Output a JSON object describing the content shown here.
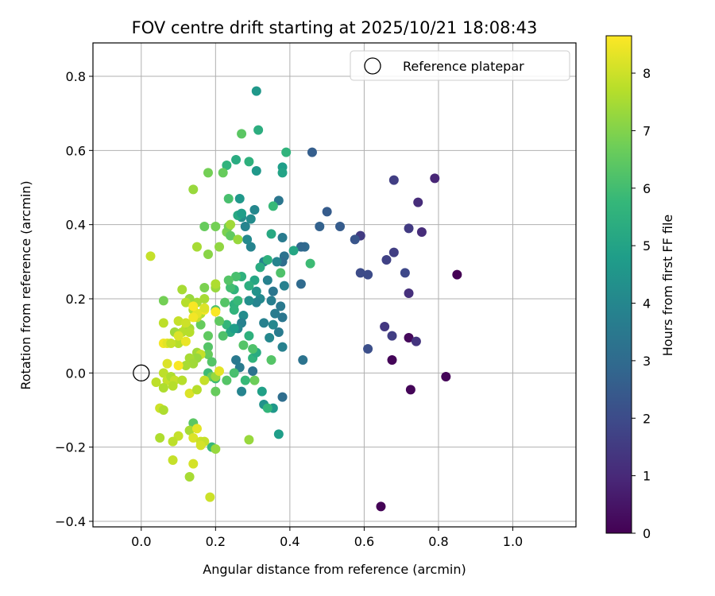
{
  "chart_data": {
    "type": "scatter",
    "title": "FOV centre drift starting at 2025/10/21 18:08:43",
    "xlabel": "Angular distance from reference (arcmin)",
    "ylabel": "Rotation from reference (arcmin)",
    "xlim": [
      -0.13,
      1.17
    ],
    "ylim": [
      -0.415,
      0.89
    ],
    "xticks": [
      0.0,
      0.2,
      0.4,
      0.6,
      0.8,
      1.0
    ],
    "xtick_labels": [
      "0.0",
      "0.2",
      "0.4",
      "0.6",
      "0.8",
      "1.0"
    ],
    "yticks": [
      -0.4,
      -0.2,
      0.0,
      0.2,
      0.4,
      0.6,
      0.8
    ],
    "ytick_labels": [
      "−0.4",
      "−0.2",
      "0.0",
      "0.2",
      "0.4",
      "0.6",
      "0.8"
    ],
    "grid": true,
    "legend": {
      "position": "top-right",
      "entries": [
        "Reference platepar"
      ]
    },
    "reference_point": {
      "label": "Reference platepar",
      "x": 0.0,
      "y": 0.0
    },
    "colorbar": {
      "label": "Hours from first FF file",
      "range": [
        0,
        8.65
      ],
      "ticks": [
        0,
        1,
        2,
        3,
        4,
        5,
        6,
        7,
        8
      ],
      "tick_labels": [
        "0",
        "1",
        "2",
        "3",
        "4",
        "5",
        "6",
        "7",
        "8"
      ],
      "colormap": "viridis"
    },
    "colors": {
      "viridis_stops": [
        "#440154",
        "#482878",
        "#3e4989",
        "#31688e",
        "#26828e",
        "#1f9e89",
        "#35b779",
        "#6ece58",
        "#b5de2b",
        "#fde725"
      ]
    },
    "points": [
      [
        0.85,
        0.265,
        0.0
      ],
      [
        0.82,
        -0.01,
        0.1
      ],
      [
        0.645,
        -0.36,
        0.05
      ],
      [
        0.675,
        0.035,
        0.1
      ],
      [
        0.725,
        -0.045,
        0.1
      ],
      [
        0.72,
        0.095,
        0.2
      ],
      [
        0.79,
        0.525,
        0.9
      ],
      [
        0.745,
        0.46,
        1.1
      ],
      [
        0.755,
        0.38,
        1.1
      ],
      [
        0.68,
        0.52,
        1.6
      ],
      [
        0.72,
        0.39,
        1.5
      ],
      [
        0.74,
        0.085,
        1.3
      ],
      [
        0.71,
        0.27,
        1.9
      ],
      [
        0.72,
        0.215,
        1.2
      ],
      [
        0.68,
        0.325,
        1.6
      ],
      [
        0.66,
        0.305,
        1.7
      ],
      [
        0.655,
        0.125,
        1.4
      ],
      [
        0.675,
        0.1,
        1.6
      ],
      [
        0.61,
        0.265,
        2.0
      ],
      [
        0.59,
        0.27,
        2.0
      ],
      [
        0.59,
        0.37,
        1.5
      ],
      [
        0.61,
        0.065,
        2.1
      ],
      [
        0.575,
        0.36,
        2.3
      ],
      [
        0.535,
        0.395,
        2.5
      ],
      [
        0.5,
        0.435,
        2.5
      ],
      [
        0.48,
        0.395,
        2.7
      ],
      [
        0.46,
        0.595,
        2.6
      ],
      [
        0.44,
        0.34,
        3.0
      ],
      [
        0.43,
        0.34,
        2.9
      ],
      [
        0.43,
        0.24,
        3.0
      ],
      [
        0.435,
        0.035,
        3.3
      ],
      [
        0.38,
        -0.065,
        3.1
      ],
      [
        0.37,
        0.465,
        3.4
      ],
      [
        0.38,
        0.365,
        3.6
      ],
      [
        0.385,
        0.315,
        3.3
      ],
      [
        0.38,
        0.3,
        3.1
      ],
      [
        0.385,
        0.235,
        3.8
      ],
      [
        0.375,
        0.18,
        3.5
      ],
      [
        0.38,
        0.15,
        3.4
      ],
      [
        0.37,
        0.11,
        3.6
      ],
      [
        0.38,
        0.07,
        3.8
      ],
      [
        0.365,
        0.3,
        3.9
      ],
      [
        0.355,
        0.22,
        3.4
      ],
      [
        0.36,
        0.16,
        3.6
      ],
      [
        0.35,
        0.195,
        3.7
      ],
      [
        0.355,
        0.13,
        4.0
      ],
      [
        0.345,
        0.095,
        4.0
      ],
      [
        0.34,
        0.25,
        3.8
      ],
      [
        0.33,
        0.135,
        3.8
      ],
      [
        0.33,
        0.3,
        3.9
      ],
      [
        0.32,
        0.2,
        4.1
      ],
      [
        0.31,
        0.19,
        3.9
      ],
      [
        0.305,
        0.44,
        4.0
      ],
      [
        0.295,
        0.415,
        4.2
      ],
      [
        0.295,
        0.34,
        3.9
      ],
      [
        0.285,
        0.36,
        4.1
      ],
      [
        0.28,
        0.395,
        3.9
      ],
      [
        0.27,
        0.42,
        4.3
      ],
      [
        0.265,
        0.47,
        4.6
      ],
      [
        0.31,
        0.22,
        4.4
      ],
      [
        0.29,
        0.195,
        4.3
      ],
      [
        0.275,
        0.155,
        4.2
      ],
      [
        0.27,
        0.135,
        3.8
      ],
      [
        0.26,
        0.12,
        4.0
      ],
      [
        0.255,
        0.035,
        3.5
      ],
      [
        0.3,
        0.005,
        3.3
      ],
      [
        0.265,
        0.015,
        3.6
      ],
      [
        0.27,
        -0.05,
        3.9
      ],
      [
        0.33,
        -0.085,
        4.4
      ],
      [
        0.325,
        -0.05,
        4.9
      ],
      [
        0.355,
        -0.095,
        4.6
      ],
      [
        0.37,
        -0.165,
        4.8
      ],
      [
        0.31,
        0.76,
        4.6
      ],
      [
        0.315,
        0.655,
        5.4
      ],
      [
        0.31,
        0.545,
        4.6
      ],
      [
        0.38,
        0.555,
        4.8
      ],
      [
        0.39,
        0.595,
        5.6
      ],
      [
        0.255,
        0.575,
        5.3
      ],
      [
        0.29,
        0.57,
        5.5
      ],
      [
        0.23,
        0.56,
        5.6
      ],
      [
        0.26,
        0.425,
        5.2
      ],
      [
        0.27,
        0.43,
        4.8
      ],
      [
        0.235,
        0.47,
        6.1
      ],
      [
        0.355,
        0.45,
        5.8
      ],
      [
        0.35,
        0.375,
        5.2
      ],
      [
        0.41,
        0.33,
        5.1
      ],
      [
        0.455,
        0.295,
        5.9
      ],
      [
        0.375,
        0.27,
        6.2
      ],
      [
        0.34,
        0.305,
        5.5
      ],
      [
        0.32,
        0.285,
        5.3
      ],
      [
        0.305,
        0.25,
        5.1
      ],
      [
        0.29,
        0.235,
        5.4
      ],
      [
        0.27,
        0.26,
        5.5
      ],
      [
        0.255,
        0.26,
        6.1
      ],
      [
        0.25,
        0.225,
        5.6
      ],
      [
        0.24,
        0.23,
        6.0
      ],
      [
        0.235,
        0.25,
        6.3
      ],
      [
        0.225,
        0.19,
        6.3
      ],
      [
        0.25,
        0.185,
        5.5
      ],
      [
        0.25,
        0.17,
        5.6
      ],
      [
        0.26,
        0.195,
        5.8
      ],
      [
        0.23,
        0.13,
        5.7
      ],
      [
        0.2,
        0.17,
        6.2
      ],
      [
        0.21,
        0.14,
        6.5
      ],
      [
        0.24,
        0.11,
        5.2
      ],
      [
        0.25,
        0.12,
        4.8
      ],
      [
        0.22,
        0.1,
        6.2
      ],
      [
        0.18,
        0.1,
        6.5
      ],
      [
        0.18,
        0.07,
        6.3
      ],
      [
        0.16,
        0.13,
        6.6
      ],
      [
        0.18,
        0.05,
        6.6
      ],
      [
        0.19,
        0.03,
        6.3
      ],
      [
        0.18,
        0.0,
        5.9
      ],
      [
        0.19,
        -0.01,
        6.7
      ],
      [
        0.2,
        -0.05,
        6.6
      ],
      [
        0.23,
        -0.02,
        6.3
      ],
      [
        0.25,
        0.0,
        6.1
      ],
      [
        0.275,
        0.075,
        6.3
      ],
      [
        0.3,
        0.04,
        5.6
      ],
      [
        0.31,
        0.055,
        5.3
      ],
      [
        0.3,
        0.065,
        6.2
      ],
      [
        0.29,
        0.1,
        5.5
      ],
      [
        0.35,
        0.035,
        6.3
      ],
      [
        0.34,
        -0.095,
        5.7
      ],
      [
        0.305,
        -0.02,
        6.7
      ],
      [
        0.28,
        -0.02,
        5.8
      ],
      [
        0.2,
        -0.015,
        5.9
      ],
      [
        0.29,
        -0.18,
        7.3
      ],
      [
        0.19,
        -0.2,
        5.8
      ],
      [
        0.21,
        0.34,
        7.2
      ],
      [
        0.2,
        0.395,
        6.8
      ],
      [
        0.23,
        0.38,
        6.9
      ],
      [
        0.235,
        0.395,
        6.8
      ],
      [
        0.24,
        0.4,
        7.4
      ],
      [
        0.24,
        0.37,
        6.5
      ],
      [
        0.26,
        0.36,
        7.3
      ],
      [
        0.2,
        0.23,
        7.3
      ],
      [
        0.2,
        0.24,
        7.6
      ],
      [
        0.17,
        0.23,
        6.9
      ],
      [
        0.18,
        0.32,
        7.1
      ],
      [
        0.17,
        0.395,
        6.6
      ],
      [
        0.14,
        0.495,
        7.3
      ],
      [
        0.18,
        0.54,
        6.8
      ],
      [
        0.22,
        0.54,
        6.6
      ],
      [
        0.15,
        0.34,
        7.5
      ],
      [
        0.17,
        0.2,
        7.5
      ],
      [
        0.15,
        0.19,
        7.5
      ],
      [
        0.13,
        0.2,
        7.3
      ],
      [
        0.12,
        0.19,
        7.7
      ],
      [
        0.14,
        0.17,
        7.6
      ],
      [
        0.16,
        0.16,
        7.7
      ],
      [
        0.15,
        0.15,
        7.9
      ],
      [
        0.12,
        0.12,
        7.8
      ],
      [
        0.13,
        0.12,
        7.5
      ],
      [
        0.13,
        0.11,
        7.7
      ],
      [
        0.11,
        0.11,
        7.7
      ],
      [
        0.09,
        0.11,
        7.4
      ],
      [
        0.1,
        0.08,
        7.7
      ],
      [
        0.06,
        0.08,
        8.5
      ],
      [
        0.07,
        0.08,
        8.3
      ],
      [
        0.08,
        0.08,
        7.9
      ],
      [
        0.12,
        0.085,
        8.4
      ],
      [
        0.15,
        0.055,
        7.4
      ],
      [
        0.17,
        0.17,
        8.5
      ],
      [
        0.2,
        0.165,
        8.6
      ],
      [
        0.17,
        0.175,
        8.2
      ],
      [
        0.15,
        0.16,
        8.3
      ],
      [
        0.14,
        0.18,
        8.6
      ],
      [
        0.14,
        0.15,
        8.5
      ],
      [
        0.06,
        0.135,
        7.8
      ],
      [
        0.1,
        0.14,
        7.9
      ],
      [
        0.12,
        0.135,
        8.0
      ],
      [
        0.1,
        0.1,
        8.2
      ],
      [
        0.16,
        0.05,
        7.9
      ],
      [
        0.15,
        0.04,
        7.3
      ],
      [
        0.13,
        0.04,
        7.5
      ],
      [
        0.14,
        0.025,
        7.4
      ],
      [
        0.12,
        0.02,
        7.5
      ],
      [
        0.1,
        0.02,
        8.6
      ],
      [
        0.07,
        0.025,
        8.2
      ],
      [
        0.06,
        0.0,
        7.8
      ],
      [
        0.07,
        -0.02,
        7.9
      ],
      [
        0.08,
        -0.01,
        7.6
      ],
      [
        0.09,
        -0.02,
        7.9
      ],
      [
        0.11,
        -0.02,
        7.7
      ],
      [
        0.06,
        -0.04,
        7.6
      ],
      [
        0.04,
        -0.025,
        7.8
      ],
      [
        0.085,
        -0.035,
        7.7
      ],
      [
        0.13,
        -0.055,
        8.2
      ],
      [
        0.15,
        -0.045,
        7.7
      ],
      [
        0.17,
        -0.02,
        7.9
      ],
      [
        0.2,
        -0.01,
        7.3
      ],
      [
        0.21,
        0.005,
        8.3
      ],
      [
        0.05,
        -0.095,
        8.0
      ],
      [
        0.06,
        -0.1,
        7.6
      ],
      [
        0.14,
        -0.135,
        6.4
      ],
      [
        0.1,
        -0.17,
        7.9
      ],
      [
        0.13,
        -0.155,
        7.5
      ],
      [
        0.15,
        -0.15,
        8.3
      ],
      [
        0.14,
        -0.175,
        8.2
      ],
      [
        0.16,
        -0.185,
        8.0
      ],
      [
        0.17,
        -0.185,
        7.9
      ],
      [
        0.16,
        -0.195,
        8.1
      ],
      [
        0.2,
        -0.205,
        7.3
      ],
      [
        0.05,
        -0.175,
        7.6
      ],
      [
        0.085,
        -0.185,
        7.8
      ],
      [
        0.085,
        -0.235,
        7.9
      ],
      [
        0.14,
        -0.245,
        8.1
      ],
      [
        0.13,
        -0.28,
        7.5
      ],
      [
        0.185,
        -0.335,
        8.0
      ],
      [
        0.025,
        0.315,
        7.9
      ],
      [
        0.06,
        0.195,
        6.8
      ],
      [
        0.11,
        0.225,
        7.5
      ],
      [
        0.27,
        0.645,
        6.4
      ],
      [
        0.38,
        0.54,
        5.0
      ]
    ]
  }
}
